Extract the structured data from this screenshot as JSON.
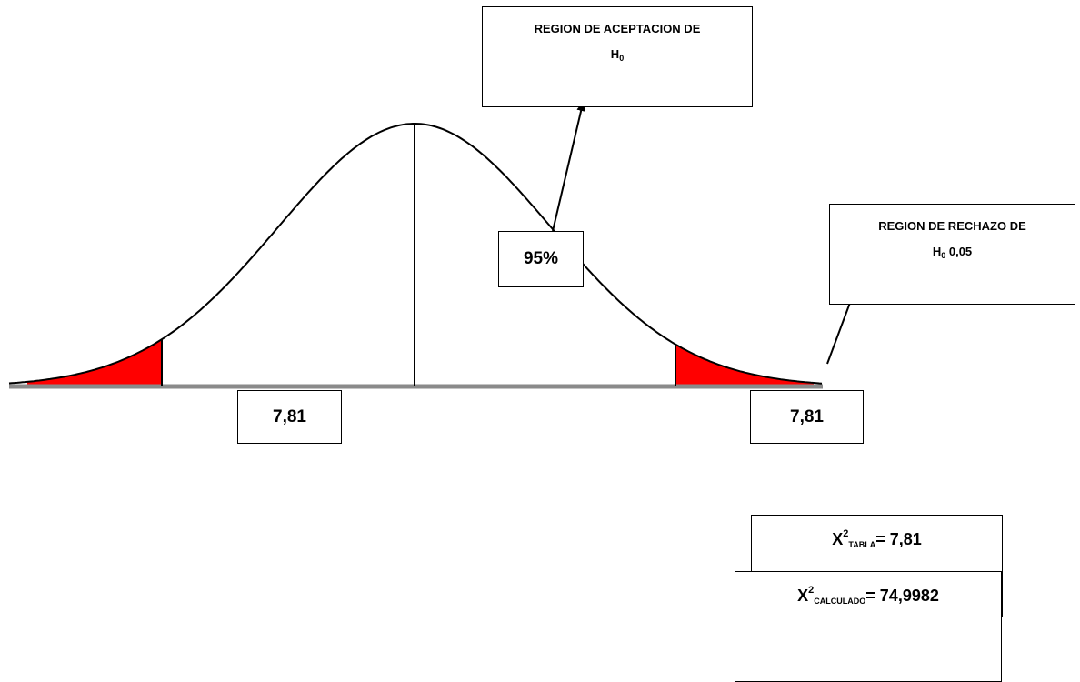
{
  "acceptance_box": {
    "line1": "REGION DE ACEPTACION DE",
    "h_letter": "H",
    "h_sub": "0"
  },
  "rejection_box": {
    "line1": "REGION DE RECHAZO DE",
    "h_letter": "H",
    "h_sub": "0",
    "alpha": " 0,05"
  },
  "percent_label": "95%",
  "critical_left": "7,81",
  "critical_right": "7,81",
  "x2_tabla": {
    "symbol": "X",
    "power": "2",
    "subscript": "TABLA",
    "value": "= 7,81"
  },
  "x2_calculado": {
    "symbol": "X",
    "power": "2",
    "subscript": "CALCULADO",
    "value": "= 74,9982"
  },
  "colors": {
    "rejection_fill": "#ff0000",
    "curve": "#000000",
    "baseline": "#8a8a8a"
  }
}
